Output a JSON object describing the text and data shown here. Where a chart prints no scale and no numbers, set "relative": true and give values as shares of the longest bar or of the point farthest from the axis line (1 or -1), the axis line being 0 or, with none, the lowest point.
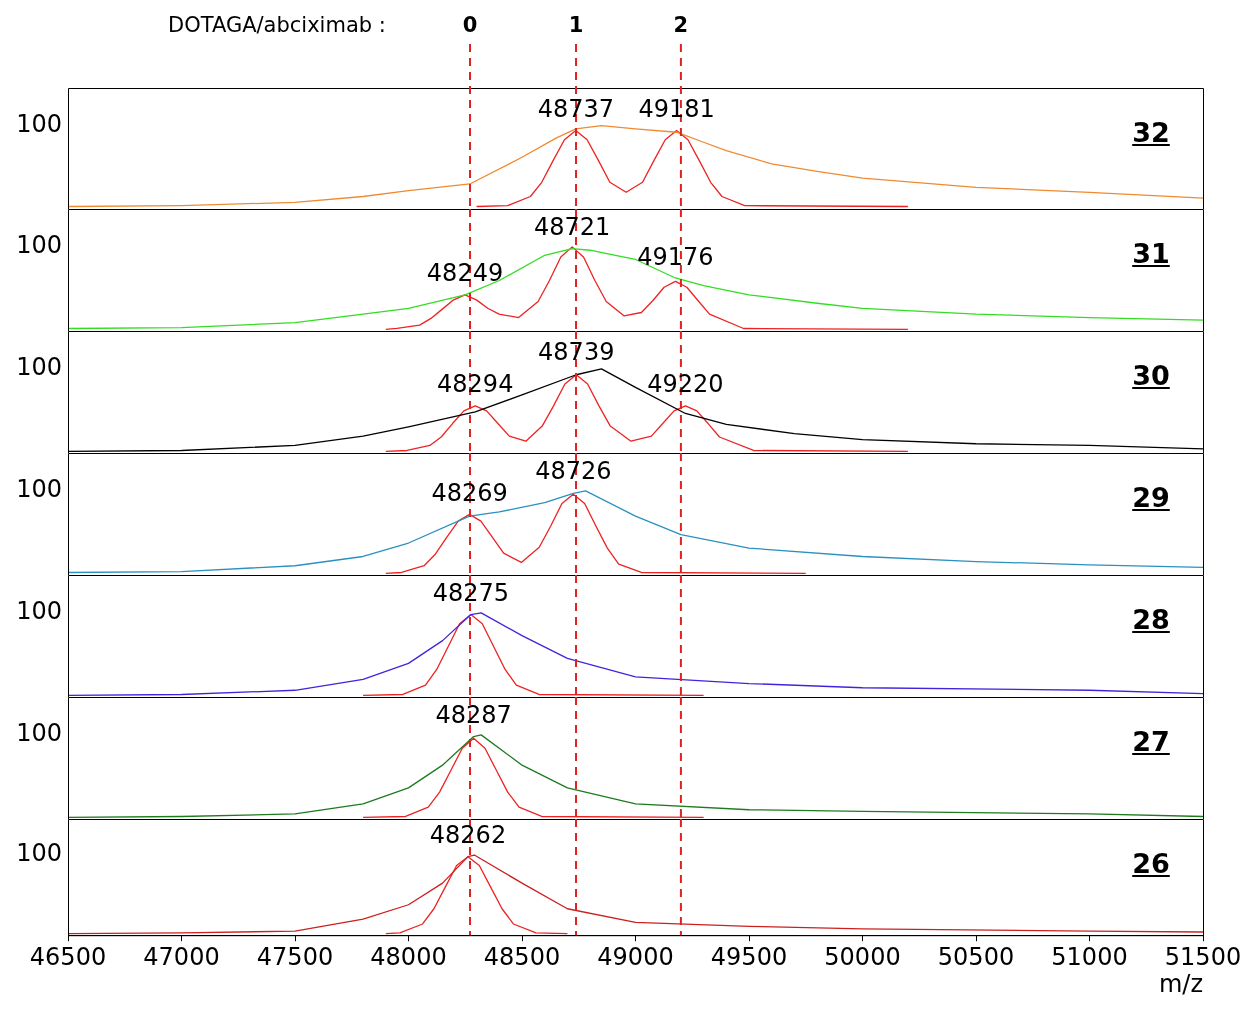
{
  "chart_data": [
    {
      "type": "line",
      "title": "DOTAGA/abciximab :",
      "relative": true,
      "xlim": [
        46500,
        51500
      ],
      "xticks": [
        46500,
        47000,
        47500,
        48000,
        48500,
        49000,
        49500,
        50000,
        50500,
        51000,
        51500
      ],
      "tick_labels": false,
      "series": [
        {
          "color": "#f08a30",
          "x": [
            46500,
            47000,
            47500,
            47800,
            48000,
            48270,
            48500,
            48650,
            48737,
            48850,
            49000,
            49181,
            49300,
            49400,
            49600,
            49800,
            50000,
            50500,
            51000,
            51500
          ],
          "values": [
            0.03,
            0.04,
            0.08,
            0.15,
            0.22,
            0.3,
            0.62,
            0.85,
            0.96,
            1.0,
            0.96,
            0.92,
            0.8,
            0.7,
            0.54,
            0.45,
            0.37,
            0.26,
            0.2,
            0.13
          ]
        },
        {
          "color": "#ee2222",
          "x": [
            48300,
            48437,
            48537,
            48587,
            48637,
            48687,
            48737,
            48787,
            48837,
            48887,
            48959,
            49031,
            49081,
            49131,
            49181,
            49231,
            49281,
            49331,
            49381,
            49481,
            50200
          ],
          "values": [
            0.03,
            0.04,
            0.15,
            0.32,
            0.58,
            0.83,
            0.94,
            0.83,
            0.58,
            0.32,
            0.2,
            0.32,
            0.58,
            0.83,
            0.94,
            0.83,
            0.58,
            0.32,
            0.15,
            0.04,
            0.03
          ]
        }
      ],
      "ref_lines": [
        {
          "axis": "x",
          "value": 48271,
          "color": "#dd2222",
          "line_style": "dashed"
        },
        {
          "axis": "x",
          "value": 48738,
          "color": "#dd2222",
          "line_style": "dashed"
        },
        {
          "axis": "x",
          "value": 49200,
          "color": "#dd2222",
          "line_style": "dashed"
        }
      ],
      "annotations": [
        "100",
        "32",
        {
          "text": "48737",
          "x": 48737,
          "y": 0.96
        },
        {
          "text": "49181",
          "x": 49181,
          "y": 0.96
        },
        "0",
        "1",
        "2"
      ]
    },
    {
      "type": "line",
      "relative": true,
      "xlim": [
        46500,
        51500
      ],
      "xticks": [
        46500,
        47000,
        47500,
        48000,
        48500,
        49000,
        49500,
        50000,
        50500,
        51000,
        51500
      ],
      "tick_labels": false,
      "series": [
        {
          "color": "#33dd22",
          "x": [
            46500,
            47000,
            47500,
            47800,
            48000,
            48249,
            48400,
            48600,
            48721,
            48800,
            49000,
            49176,
            49300,
            49500,
            49800,
            50000,
            50500,
            51000,
            51500
          ],
          "values": [
            0.03,
            0.04,
            0.1,
            0.2,
            0.27,
            0.43,
            0.6,
            0.9,
            0.98,
            0.96,
            0.85,
            0.63,
            0.54,
            0.43,
            0.33,
            0.27,
            0.2,
            0.16,
            0.13
          ]
        },
        {
          "color": "#ee2222",
          "x": [
            47900,
            47949,
            48049,
            48099,
            48149,
            48199,
            48249,
            48299,
            48349,
            48399,
            48485,
            48571,
            48621,
            48671,
            48721,
            48771,
            48821,
            48871,
            48949,
            49026,
            49076,
            49126,
            49176,
            49226,
            49276,
            49326,
            49476,
            50200
          ],
          "values": [
            0.02,
            0.03,
            0.07,
            0.15,
            0.26,
            0.37,
            0.43,
            0.37,
            0.27,
            0.2,
            0.16,
            0.35,
            0.6,
            0.88,
            1.0,
            0.88,
            0.6,
            0.35,
            0.18,
            0.22,
            0.36,
            0.52,
            0.59,
            0.52,
            0.36,
            0.2,
            0.03,
            0.02
          ]
        }
      ],
      "ref_lines": [
        {
          "axis": "x",
          "value": 48271,
          "color": "#dd2222",
          "line_style": "dashed"
        },
        {
          "axis": "x",
          "value": 48738,
          "color": "#dd2222",
          "line_style": "dashed"
        },
        {
          "axis": "x",
          "value": 49200,
          "color": "#dd2222",
          "line_style": "dashed"
        }
      ],
      "annotations": [
        "100",
        "31",
        {
          "text": "48249",
          "x": 48249,
          "y": 0.45
        },
        {
          "text": "48721",
          "x": 48721,
          "y": 1.0
        },
        {
          "text": "49176",
          "x": 49176,
          "y": 0.64
        }
      ]
    },
    {
      "type": "line",
      "relative": true,
      "xlim": [
        46500,
        51500
      ],
      "xticks": [
        46500,
        47000,
        47500,
        48000,
        48500,
        49000,
        49500,
        50000,
        50500,
        51000,
        51500
      ],
      "tick_labels": false,
      "series": [
        {
          "color": "#000000",
          "x": [
            46500,
            47000,
            47500,
            47800,
            48000,
            48294,
            48500,
            48739,
            48850,
            49000,
            49220,
            49400,
            49700,
            50000,
            50500,
            51000,
            51500
          ],
          "values": [
            0.02,
            0.03,
            0.09,
            0.2,
            0.31,
            0.49,
            0.69,
            0.93,
            1.0,
            0.78,
            0.47,
            0.34,
            0.23,
            0.16,
            0.11,
            0.09,
            0.05
          ]
        },
        {
          "color": "#ee2222",
          "x": [
            47900,
            47994,
            48094,
            48144,
            48194,
            48244,
            48294,
            48344,
            48394,
            48444,
            48517,
            48589,
            48639,
            48689,
            48739,
            48789,
            48839,
            48889,
            48980,
            49070,
            49120,
            49170,
            49220,
            49270,
            49320,
            49370,
            49520,
            50200
          ],
          "values": [
            0.02,
            0.03,
            0.09,
            0.19,
            0.35,
            0.5,
            0.56,
            0.5,
            0.35,
            0.2,
            0.14,
            0.32,
            0.56,
            0.82,
            0.93,
            0.82,
            0.56,
            0.32,
            0.14,
            0.2,
            0.35,
            0.5,
            0.56,
            0.5,
            0.35,
            0.19,
            0.03,
            0.02
          ]
        }
      ],
      "ref_lines": [
        {
          "axis": "x",
          "value": 48271,
          "color": "#dd2222",
          "line_style": "dashed"
        },
        {
          "axis": "x",
          "value": 48738,
          "color": "#dd2222",
          "line_style": "dashed"
        },
        {
          "axis": "x",
          "value": 49200,
          "color": "#dd2222",
          "line_style": "dashed"
        }
      ],
      "annotations": [
        "100",
        "30",
        {
          "text": "48294",
          "x": 48294,
          "y": 0.58
        },
        {
          "text": "48739",
          "x": 48739,
          "y": 0.97
        },
        {
          "text": "49220",
          "x": 49220,
          "y": 0.58
        }
      ]
    },
    {
      "type": "line",
      "relative": true,
      "xlim": [
        46500,
        51500
      ],
      "xticks": [
        46500,
        47000,
        47500,
        48000,
        48500,
        49000,
        49500,
        50000,
        50500,
        51000,
        51500
      ],
      "tick_labels": false,
      "series": [
        {
          "color": "#2a90c0",
          "x": [
            46500,
            47000,
            47500,
            47800,
            48000,
            48269,
            48400,
            48600,
            48726,
            48780,
            49000,
            49200,
            49500,
            50000,
            50500,
            51000,
            51500
          ],
          "values": [
            0.03,
            0.04,
            0.11,
            0.22,
            0.38,
            0.7,
            0.75,
            0.86,
            0.97,
            1.0,
            0.7,
            0.48,
            0.32,
            0.22,
            0.16,
            0.12,
            0.09
          ]
        },
        {
          "color": "#ee2222",
          "x": [
            47900,
            47969,
            48069,
            48119,
            48169,
            48219,
            48269,
            48319,
            48369,
            48419,
            48497,
            48576,
            48626,
            48676,
            48726,
            48776,
            48826,
            48876,
            48926,
            49026,
            49750
          ],
          "values": [
            0.02,
            0.03,
            0.11,
            0.25,
            0.45,
            0.64,
            0.72,
            0.64,
            0.45,
            0.26,
            0.15,
            0.33,
            0.58,
            0.85,
            0.96,
            0.85,
            0.58,
            0.32,
            0.13,
            0.03,
            0.02
          ]
        }
      ],
      "ref_lines": [
        {
          "axis": "x",
          "value": 48271,
          "color": "#dd2222",
          "line_style": "dashed"
        },
        {
          "axis": "x",
          "value": 48738,
          "color": "#dd2222",
          "line_style": "dashed"
        },
        {
          "axis": "x",
          "value": 49200,
          "color": "#dd2222",
          "line_style": "dashed"
        }
      ],
      "annotations": [
        "100",
        "29",
        {
          "text": "48269",
          "x": 48269,
          "y": 0.74
        },
        {
          "text": "48726",
          "x": 48726,
          "y": 1.0
        }
      ]
    },
    {
      "type": "line",
      "relative": true,
      "xlim": [
        46500,
        51500
      ],
      "xticks": [
        46500,
        47000,
        47500,
        48000,
        48500,
        49000,
        49500,
        50000,
        50500,
        51000,
        51500
      ],
      "tick_labels": false,
      "series": [
        {
          "color": "#4422dd",
          "x": [
            46500,
            47000,
            47500,
            47800,
            48000,
            48150,
            48275,
            48320,
            48500,
            48700,
            49000,
            49500,
            50000,
            51000,
            51500
          ],
          "values": [
            0.02,
            0.03,
            0.08,
            0.21,
            0.4,
            0.67,
            0.98,
            1.0,
            0.73,
            0.46,
            0.24,
            0.16,
            0.11,
            0.08,
            0.04
          ]
        },
        {
          "color": "#ee2222",
          "x": [
            47800,
            47975,
            48075,
            48125,
            48175,
            48225,
            48275,
            48325,
            48375,
            48425,
            48475,
            48575,
            49300
          ],
          "values": [
            0.02,
            0.03,
            0.14,
            0.33,
            0.6,
            0.87,
            0.98,
            0.87,
            0.6,
            0.33,
            0.14,
            0.03,
            0.02
          ]
        }
      ],
      "ref_lines": [
        {
          "axis": "x",
          "value": 48271,
          "color": "#dd2222",
          "line_style": "dashed"
        },
        {
          "axis": "x",
          "value": 48738,
          "color": "#dd2222",
          "line_style": "dashed"
        },
        {
          "axis": "x",
          "value": 49200,
          "color": "#dd2222",
          "line_style": "dashed"
        }
      ],
      "annotations": [
        "100",
        "28",
        {
          "text": "48275",
          "x": 48275,
          "y": 1.0
        }
      ]
    },
    {
      "type": "line",
      "relative": true,
      "xlim": [
        46500,
        51500
      ],
      "xticks": [
        46500,
        47000,
        47500,
        48000,
        48500,
        49000,
        49500,
        50000,
        50500,
        51000,
        51500
      ],
      "tick_labels": false,
      "series": [
        {
          "color": "#1e7a1e",
          "x": [
            46500,
            47000,
            47500,
            47800,
            48000,
            48150,
            48287,
            48320,
            48500,
            48700,
            49000,
            49500,
            50000,
            51000,
            51500
          ],
          "values": [
            0.02,
            0.03,
            0.06,
            0.18,
            0.37,
            0.64,
            0.98,
            1.0,
            0.64,
            0.37,
            0.18,
            0.11,
            0.09,
            0.06,
            0.03
          ]
        },
        {
          "color": "#ee2222",
          "x": [
            47800,
            47987,
            48087,
            48137,
            48187,
            48237,
            48287,
            48337,
            48387,
            48437,
            48487,
            48587,
            49300
          ],
          "values": [
            0.02,
            0.03,
            0.14,
            0.32,
            0.58,
            0.84,
            0.96,
            0.84,
            0.58,
            0.32,
            0.14,
            0.03,
            0.02
          ]
        }
      ],
      "ref_lines": [
        {
          "axis": "x",
          "value": 48271,
          "color": "#dd2222",
          "line_style": "dashed"
        },
        {
          "axis": "x",
          "value": 48738,
          "color": "#dd2222",
          "line_style": "dashed"
        },
        {
          "axis": "x",
          "value": 49200,
          "color": "#dd2222",
          "line_style": "dashed"
        }
      ],
      "annotations": [
        "100",
        "27",
        {
          "text": "48287",
          "x": 48287,
          "y": 1.0
        }
      ]
    },
    {
      "type": "line",
      "relative": true,
      "xlim": [
        46500,
        51500
      ],
      "xticks": [
        46500,
        47000,
        47500,
        48000,
        48500,
        49000,
        49500,
        50000,
        50500,
        51000,
        51500
      ],
      "tick_labels": "x",
      "xlabel": "m/z",
      "series": [
        {
          "color": "#cc2020",
          "x": [
            46500,
            47000,
            47500,
            47800,
            48000,
            48150,
            48262,
            48290,
            48500,
            48700,
            49000,
            49500,
            50000,
            51000,
            51500
          ],
          "values": [
            0.02,
            0.03,
            0.05,
            0.2,
            0.38,
            0.65,
            0.98,
            1.0,
            0.65,
            0.33,
            0.16,
            0.11,
            0.08,
            0.05,
            0.04
          ]
        },
        {
          "color": "#ee2222",
          "x": [
            47900,
            47962,
            48062,
            48112,
            48162,
            48212,
            48262,
            48312,
            48362,
            48412,
            48462,
            48562,
            48700
          ],
          "values": [
            0.02,
            0.03,
            0.14,
            0.33,
            0.6,
            0.87,
            0.98,
            0.87,
            0.6,
            0.33,
            0.14,
            0.03,
            0.02
          ]
        }
      ],
      "ref_lines": [
        {
          "axis": "x",
          "value": 48271,
          "color": "#dd2222",
          "line_style": "dashed"
        },
        {
          "axis": "x",
          "value": 48738,
          "color": "#dd2222",
          "line_style": "dashed"
        },
        {
          "axis": "x",
          "value": 49200,
          "color": "#dd2222",
          "line_style": "dashed"
        }
      ],
      "annotations": [
        "100",
        "26",
        {
          "text": "48262",
          "x": 48262,
          "y": 1.0
        }
      ]
    }
  ]
}
